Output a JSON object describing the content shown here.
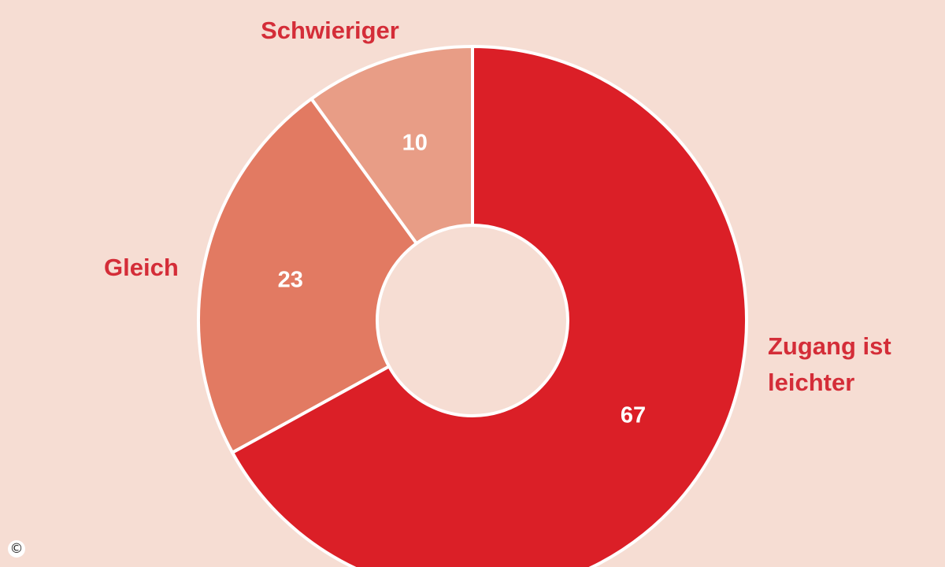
{
  "chart_data": {
    "type": "pie",
    "style": "donut",
    "categories": [
      "Zugang ist leichter",
      "Gleich",
      "Schwieriger"
    ],
    "label_lines": [
      [
        "Zugang ist",
        "leichter"
      ],
      [
        "Gleich"
      ],
      [
        "Schwieriger"
      ]
    ],
    "values": [
      67,
      23,
      10
    ],
    "colors": [
      "#db1f27",
      "#e27a62",
      "#e89d86"
    ],
    "background": "#f6ddd3",
    "legend": "none",
    "labels_outside": true
  },
  "copyright_symbol": "©"
}
